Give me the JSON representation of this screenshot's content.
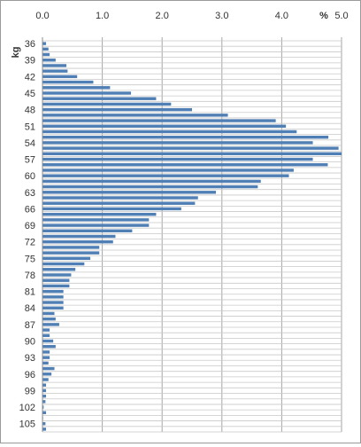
{
  "chart_data": {
    "type": "bar",
    "orientation": "horizontal",
    "xlabel": "%",
    "ylabel": "kg",
    "xlim": [
      0,
      5
    ],
    "x_ticks": [
      "0.0",
      "1.0",
      "2.0",
      "3.0",
      "4.0",
      "5.0"
    ],
    "x_axis_position": "top",
    "grid": true,
    "bar_color": "#4F7FB4",
    "categories": [
      36,
      37,
      38,
      39,
      40,
      41,
      42,
      43,
      44,
      45,
      46,
      47,
      48,
      49,
      50,
      51,
      52,
      53,
      54,
      55,
      56,
      57,
      58,
      59,
      60,
      61,
      62,
      63,
      64,
      65,
      66,
      67,
      68,
      69,
      70,
      71,
      72,
      73,
      74,
      75,
      76,
      77,
      78,
      79,
      80,
      81,
      82,
      83,
      84,
      85,
      86,
      87,
      88,
      89,
      90,
      91,
      92,
      93,
      94,
      95,
      96,
      97,
      98,
      99,
      100,
      101,
      102,
      103,
      104,
      105,
      106
    ],
    "labeled_categories": [
      "36",
      "39",
      "42",
      "45",
      "48",
      "51",
      "54",
      "57",
      "60",
      "63",
      "66",
      "69",
      "72",
      "75",
      "78",
      "81",
      "84",
      "87",
      "90",
      "93",
      "96",
      "99",
      "102",
      "105"
    ],
    "values": [
      0.06,
      0.1,
      0.12,
      0.22,
      0.4,
      0.42,
      0.58,
      0.85,
      1.13,
      1.48,
      1.9,
      2.15,
      2.5,
      3.1,
      3.9,
      4.07,
      4.25,
      4.78,
      4.52,
      4.95,
      5.0,
      4.52,
      4.77,
      4.2,
      4.12,
      3.65,
      3.6,
      2.9,
      2.6,
      2.55,
      2.32,
      1.9,
      1.78,
      1.78,
      1.5,
      1.22,
      1.18,
      0.95,
      0.95,
      0.8,
      0.7,
      0.55,
      0.48,
      0.45,
      0.45,
      0.35,
      0.35,
      0.35,
      0.35,
      0.2,
      0.22,
      0.28,
      0.12,
      0.12,
      0.18,
      0.22,
      0.12,
      0.12,
      0.1,
      0.2,
      0.15,
      0.1,
      0.06,
      0.06,
      0.06,
      0.05,
      0.02,
      0.06,
      0.01,
      0.05,
      0.06
    ]
  }
}
